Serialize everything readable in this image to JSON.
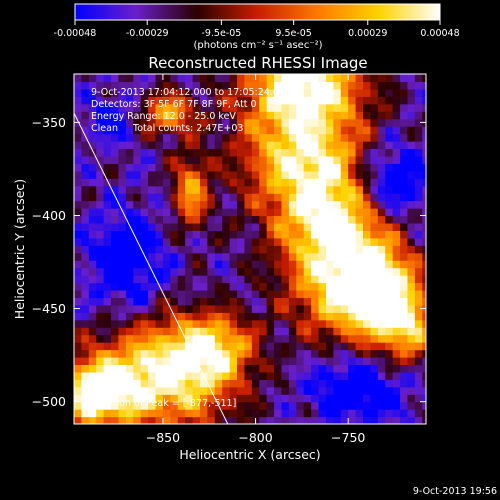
{
  "chart_data": {
    "type": "heatmap",
    "title": "Reconstructed RHESSI Image",
    "xlabel": "Heliocentric X (arcsec)",
    "ylabel": "Heliocentric Y (arcsec)",
    "xlim": [
      -898,
      -708
    ],
    "ylim": [
      -512,
      -324
    ],
    "x_ticks": [
      -850,
      -800,
      -750
    ],
    "y_ticks": [
      -500,
      -450,
      -400,
      -350
    ],
    "grid": false,
    "colorbar": {
      "min": -0.00048,
      "max": 0.00048,
      "tick_values": [
        -0.00048,
        -0.00029,
        -9.5e-05,
        9.5e-05,
        0.00029,
        0.00048
      ],
      "tick_labels": [
        "-0.00048",
        "-0.00029",
        "-9.5e-05",
        "9.5e-05",
        "0.00029",
        "0.00048"
      ],
      "units": "(photons cm⁻² s⁻¹ asec⁻²)",
      "colors": [
        "#0000ff",
        "#6a1fc8",
        "#2a0000",
        "#c81e00",
        "#ff7a00",
        "#ffd200",
        "#ffffff"
      ]
    },
    "annotations": [
      "9-Oct-2013 17:04:12.000 to 17:05:24.000",
      "Detectors: 3F 5F 6F 7F 8F 9F, Att 0",
      "Energy Range: 12.0 - 25.0 keV",
      "Clean     Total counts: 2.47E+03"
    ],
    "peak_label": "Position of Peak = [-877,-511]",
    "peak": [
      -877,
      -511
    ],
    "limb_line": {
      "from": [
        -898,
        -345
      ],
      "to": [
        -815,
        -512
      ]
    },
    "hot_regions": [
      {
        "x": -774,
        "y": -329,
        "sx": 22,
        "sy": 14,
        "amp": 1.25
      },
      {
        "x": -775,
        "y": -364,
        "sx": 24,
        "sy": 20,
        "amp": 1.05
      },
      {
        "x": -760,
        "y": -400,
        "sx": 22,
        "sy": 20,
        "amp": 1.1
      },
      {
        "x": -752,
        "y": -438,
        "sx": 20,
        "sy": 20,
        "amp": 1.1
      },
      {
        "x": -732,
        "y": -440,
        "sx": 14,
        "sy": 16,
        "amp": 0.95
      },
      {
        "x": -847,
        "y": -345,
        "sx": 10,
        "sy": 8,
        "amp": 0.9
      },
      {
        "x": -835,
        "y": -387,
        "sx": 7,
        "sy": 14,
        "amp": 0.85
      },
      {
        "x": -848,
        "y": -485,
        "sx": 26,
        "sy": 20,
        "amp": 1.3
      },
      {
        "x": -822,
        "y": -470,
        "sx": 14,
        "sy": 12,
        "amp": 0.8
      },
      {
        "x": -886,
        "y": -495,
        "sx": 14,
        "sy": 12,
        "amp": 1.3
      },
      {
        "x": -718,
        "y": -460,
        "sx": 12,
        "sy": 14,
        "amp": 0.85
      }
    ],
    "cold_regions": [
      {
        "x": -728,
        "y": -382,
        "sx": 14,
        "sy": 14,
        "amp": 0.75
      },
      {
        "x": -870,
        "y": -425,
        "sx": 14,
        "sy": 18,
        "amp": 0.55
      },
      {
        "x": -745,
        "y": -492,
        "sx": 18,
        "sy": 12,
        "amp": 0.6
      },
      {
        "x": -878,
        "y": -348,
        "sx": 8,
        "sy": 8,
        "amp": 0.45
      }
    ]
  },
  "footer": {
    "timestamp": "9-Oct-2013 19:56"
  }
}
